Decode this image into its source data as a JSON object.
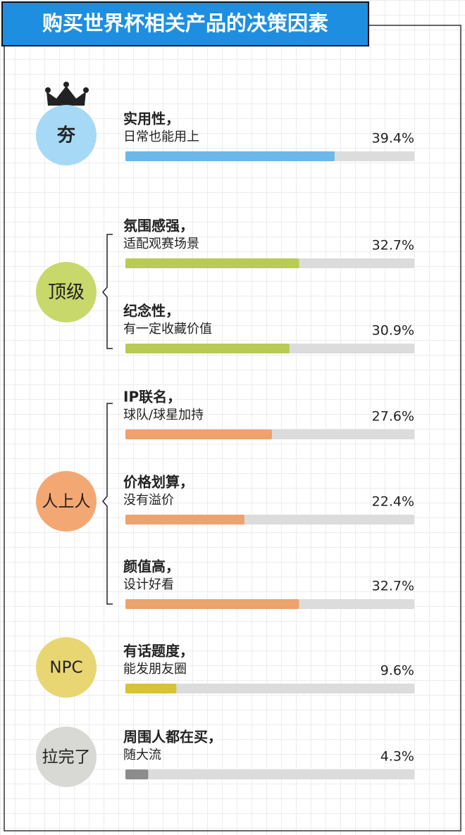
{
  "chart_data": {
    "type": "bar",
    "title": "购买世界杯相关产品的决策因素",
    "xlim": [
      0,
      54.4
    ],
    "groups": [
      {
        "label": "夯",
        "color": "#a6d9f5",
        "bar_color": "#6bb8ea",
        "items": [
          {
            "title": "实用性，",
            "subtitle": "日常也能用上",
            "value": 39.4,
            "value_label": "39.4%"
          }
        ]
      },
      {
        "label": "顶级",
        "color": "#c8d86a",
        "bar_color": "#b9cb55",
        "items": [
          {
            "title": "氛围感强，",
            "subtitle": "适配观赛场景",
            "value": 32.7,
            "value_label": "32.7%"
          },
          {
            "title": "纪念性，",
            "subtitle": "有一定收藏价值",
            "value": 30.9,
            "value_label": "30.9%"
          }
        ]
      },
      {
        "label": "人上人",
        "color": "#f3a873",
        "bar_color": "#eca36e",
        "items": [
          {
            "title": "IP联名，",
            "subtitle": "球队/球星加持",
            "value": 27.6,
            "value_label": "27.6%"
          },
          {
            "title": "价格划算，",
            "subtitle": "没有溢价",
            "value": 22.4,
            "value_label": "22.4%"
          },
          {
            "title": "颜值高，",
            "subtitle": "设计好看",
            "value": 32.7,
            "value_label": "32.7%"
          }
        ]
      },
      {
        "label": "NPC",
        "color": "#e8d673",
        "bar_color": "#d8c334",
        "items": [
          {
            "title": "有话题度，",
            "subtitle": "能发朋友圈",
            "value": 9.6,
            "value_label": "9.6%"
          }
        ]
      },
      {
        "label": "拉完了",
        "color": "#d8d8d4",
        "bar_color": "#8c8c8c",
        "items": [
          {
            "title": "周围人都在买，",
            "subtitle": "随大流",
            "value": 4.3,
            "value_label": "4.3%"
          }
        ]
      }
    ]
  }
}
